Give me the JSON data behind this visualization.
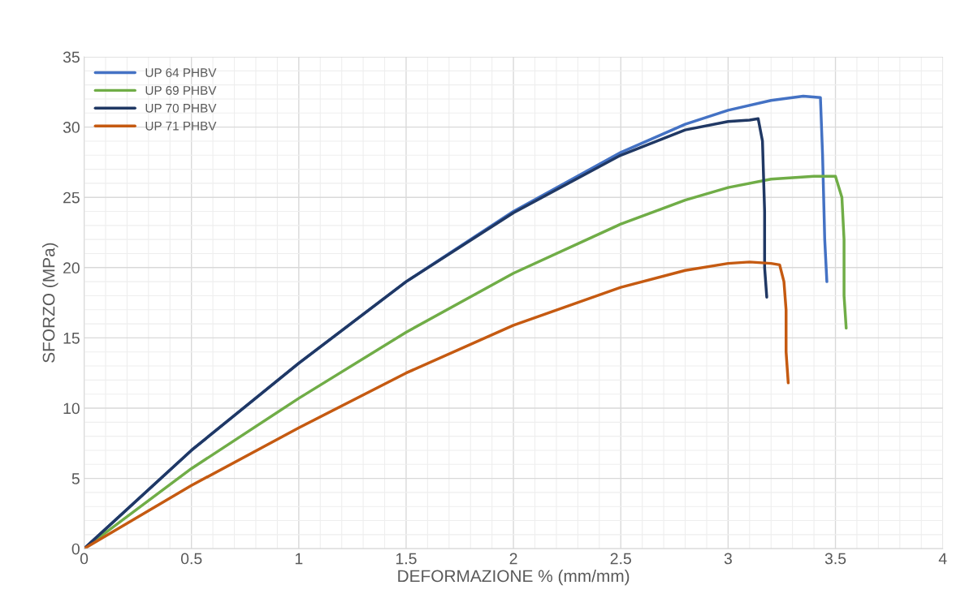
{
  "chart_data": {
    "type": "line",
    "xlabel": "DEFORMAZIONE % (mm/mm)",
    "ylabel": "SFORZO (MPa)",
    "xlim": [
      0,
      4
    ],
    "xticks": [
      0,
      0.5,
      1,
      1.5,
      2,
      2.5,
      3,
      3.5,
      4
    ],
    "ylim": [
      0,
      35
    ],
    "yticks": [
      0,
      5,
      10,
      15,
      20,
      25,
      30,
      35
    ],
    "grid": true,
    "legend": "top left",
    "marker": "none",
    "line_style": "solid",
    "series": [
      {
        "name": "UP 64 PHBV",
        "color": "#4472c4",
        "x": [
          0,
          0.5,
          1,
          1.5,
          2,
          2.5,
          2.8,
          3,
          3.2,
          3.35,
          3.43,
          3.44,
          3.45,
          3.46
        ],
        "values": [
          0,
          7,
          13.2,
          19,
          24,
          28.2,
          30.2,
          31.2,
          31.9,
          32.2,
          32.1,
          28,
          22,
          19
        ]
      },
      {
        "name": "UP 69 PHBV",
        "color": "#70ad47",
        "x": [
          0,
          0.5,
          1,
          1.5,
          2,
          2.5,
          2.8,
          3,
          3.2,
          3.4,
          3.5,
          3.53,
          3.54,
          3.54,
          3.55
        ],
        "values": [
          0,
          5.7,
          10.7,
          15.4,
          19.6,
          23.1,
          24.8,
          25.7,
          26.3,
          26.5,
          26.5,
          25,
          22,
          18,
          15.7
        ]
      },
      {
        "name": "UP 70 PHBV",
        "color": "#203864",
        "x": [
          0,
          0.5,
          1,
          1.5,
          2,
          2.5,
          2.8,
          3,
          3.1,
          3.14,
          3.16,
          3.17,
          3.17,
          3.18
        ],
        "values": [
          0,
          7,
          13.2,
          19,
          23.9,
          28,
          29.8,
          30.4,
          30.5,
          30.6,
          29,
          24,
          20,
          17.9
        ]
      },
      {
        "name": "UP 71 PHBV",
        "color": "#c55a11",
        "x": [
          0,
          0.5,
          1,
          1.5,
          2,
          2.5,
          2.8,
          3,
          3.1,
          3.2,
          3.24,
          3.26,
          3.27,
          3.27,
          3.28
        ],
        "values": [
          0,
          4.5,
          8.6,
          12.5,
          15.9,
          18.6,
          19.8,
          20.3,
          20.4,
          20.3,
          20.2,
          19,
          17,
          14,
          11.8
        ]
      }
    ]
  }
}
